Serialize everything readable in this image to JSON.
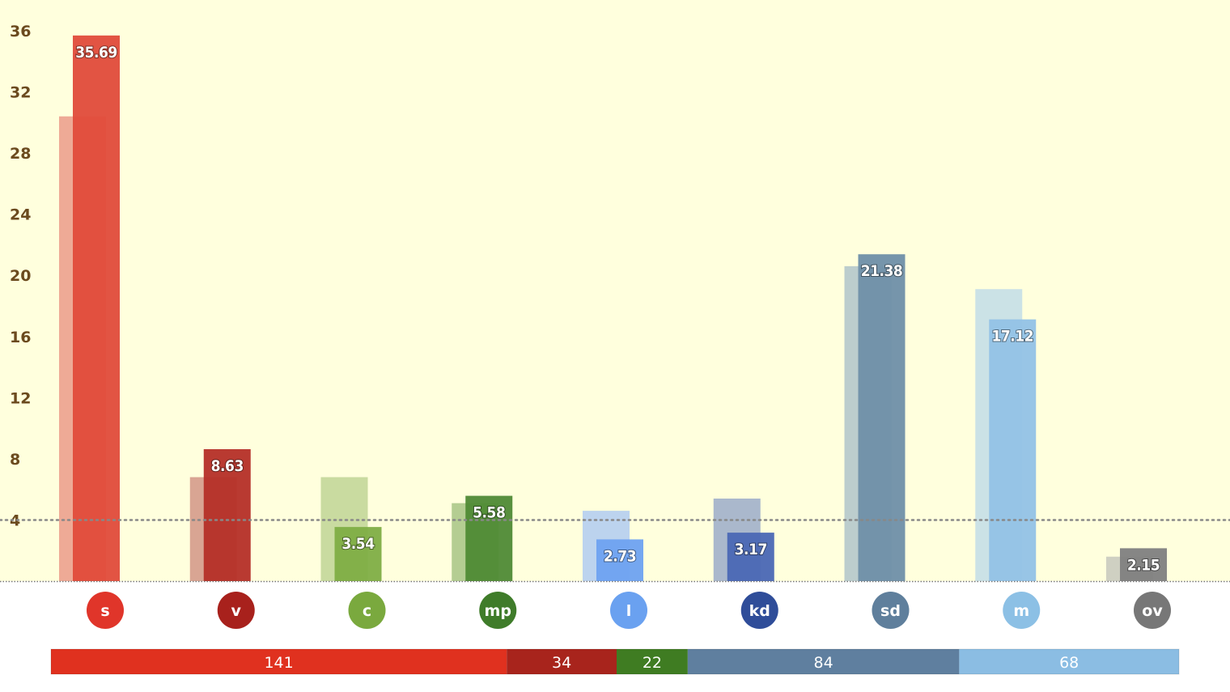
{
  "chart_data": {
    "type": "bar",
    "ylim": [
      0,
      36
    ],
    "yticks": [
      4,
      8,
      12,
      16,
      20,
      24,
      28,
      32,
      36
    ],
    "threshold": 4,
    "categories": [
      "s",
      "v",
      "c",
      "mp",
      "l",
      "kd",
      "sd",
      "m",
      "ov"
    ],
    "series": [
      {
        "values": [
          30.4,
          6.8,
          6.8,
          5.1,
          4.6,
          5.4,
          20.6,
          19.1,
          1.6
        ]
      },
      {
        "values": [
          35.69,
          8.63,
          3.54,
          5.58,
          2.73,
          3.17,
          21.38,
          17.12,
          2.15
        ],
        "labels": [
          "35.69",
          "8.63",
          "3.54",
          "5.58",
          "2.73",
          "3.17",
          "21.38",
          "17.12",
          "2.15"
        ]
      }
    ],
    "colors": {
      "current": [
        "#e04b3a",
        "#b52f27",
        "#7fae45",
        "#4f8a35",
        "#6ea2f0",
        "#4a67b4",
        "#6f8fa8",
        "#92c2e6",
        "#808080"
      ],
      "previous": [
        "#eeaa96",
        "#d9a593",
        "#c9dba0",
        "#b4cd92",
        "#bcd3ee",
        "#aab8cc",
        "#bccdcd",
        "#cbe2e6",
        "#cfd0c2"
      ],
      "circles": [
        "#e0352a",
        "#a8211c",
        "#7aa93e",
        "#3f7c2a",
        "#6aa1f0",
        "#2f4d99",
        "#5f7f9c",
        "#8cc0e5",
        "#777777"
      ]
    },
    "seats": [
      {
        "value": 141,
        "label": "141",
        "color": "#e0311f"
      },
      {
        "value": 34,
        "label": "34",
        "color": "#a8241c"
      },
      {
        "value": 22,
        "label": "22",
        "color": "#3f7c22"
      },
      {
        "value": 84,
        "label": "84",
        "color": "#5f7f9f"
      },
      {
        "value": 68,
        "label": "68",
        "color": "#8bbde3"
      }
    ]
  }
}
